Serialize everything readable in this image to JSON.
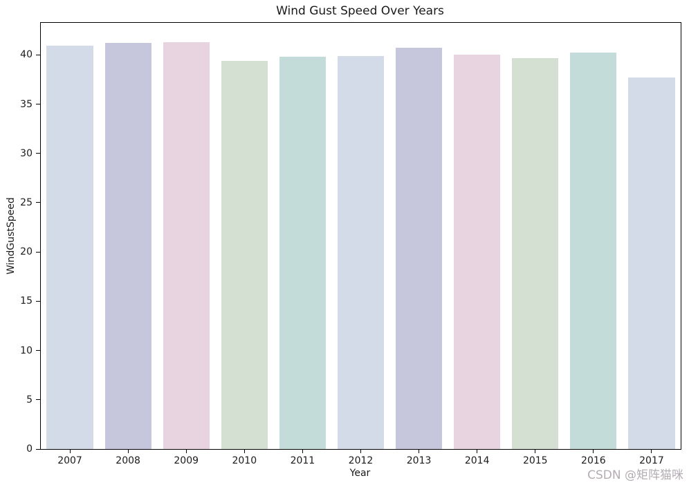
{
  "title": "Wind Gust Speed Over Years",
  "watermark": "CSDN @矩阵猫咪",
  "watermark_color": "#b3acb3",
  "chart_data": {
    "type": "bar",
    "title": "Wind Gust Speed Over Years",
    "xlabel": "Year",
    "ylabel": "WindGustSpeed",
    "categories": [
      "2007",
      "2008",
      "2009",
      "2010",
      "2011",
      "2012",
      "2013",
      "2014",
      "2015",
      "2016",
      "2017"
    ],
    "values": [
      40.9,
      41.2,
      41.3,
      39.4,
      39.8,
      39.9,
      40.7,
      40.0,
      39.7,
      40.2,
      37.7
    ],
    "bar_colors": [
      "#d4dbe8",
      "#c6c7dd",
      "#e8d3e0",
      "#d4e0d2",
      "#c3dcda",
      "#d4dbe8",
      "#c6c7dd",
      "#e8d3e0",
      "#d4e0d2",
      "#c3dcda",
      "#d4dbe8"
    ],
    "ylim": [
      0,
      43.25
    ],
    "yticks": [
      0,
      5,
      10,
      15,
      20,
      25,
      30,
      35,
      40
    ],
    "bar_width_fraction": 0.8,
    "grid": false,
    "legend": null,
    "spines": "all",
    "background": "#ffffff"
  }
}
